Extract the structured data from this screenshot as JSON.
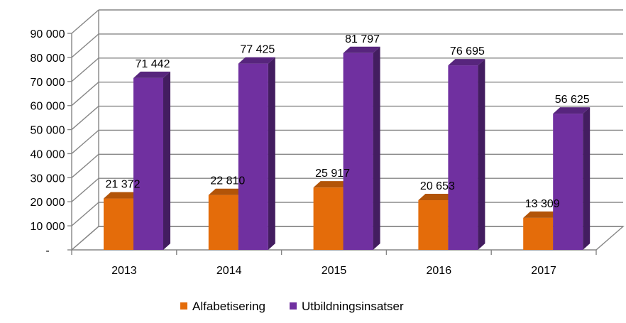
{
  "chart_data": {
    "type": "bar",
    "style": "3d-clustered-column",
    "categories": [
      "2013",
      "2014",
      "2015",
      "2016",
      "2017"
    ],
    "series": [
      {
        "name": "Alfabetisering",
        "values": [
          21372,
          22810,
          25917,
          20653,
          13309
        ],
        "labels": [
          "21 372",
          "22 810",
          "25 917",
          "20 653",
          "13 309"
        ],
        "color": "#E46C0A"
      },
      {
        "name": "Utbildningsinsatser",
        "values": [
          71442,
          77425,
          81797,
          76695,
          56625
        ],
        "labels": [
          "71 442",
          "77 425",
          "81 797",
          "76 695",
          "56 625"
        ],
        "color": "#7030A0"
      }
    ],
    "y_ticks": [
      0,
      10000,
      20000,
      30000,
      40000,
      50000,
      60000,
      70000,
      80000,
      90000
    ],
    "y_tick_labels": [
      "-",
      "10 000",
      "20 000",
      "30 000",
      "40 000",
      "50 000",
      "60 000",
      "70 000",
      "80 000",
      "90 000"
    ],
    "ylim": [
      0,
      90000
    ],
    "grid": true,
    "legend": "bottom",
    "title": "",
    "xlabel": "",
    "ylabel": ""
  }
}
